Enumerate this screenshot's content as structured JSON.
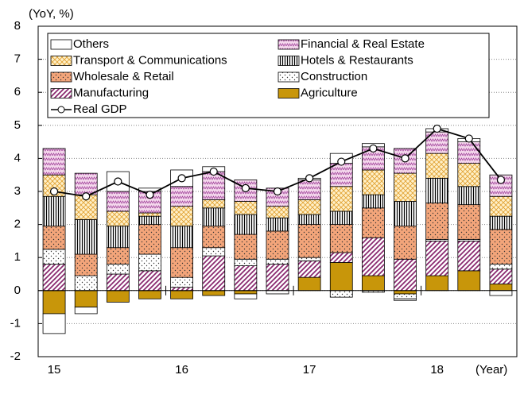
{
  "chart_data": {
    "type": "stacked_bar",
    "y_label": "(YoY, %)",
    "x_label": "(Year)",
    "categories": [
      "15",
      null,
      null,
      null,
      "16",
      null,
      null,
      null,
      "17",
      null,
      null,
      null,
      "18",
      null,
      null
    ],
    "ylim": [
      -2,
      8
    ],
    "yticks": [
      -2,
      -1,
      0,
      1,
      2,
      3,
      4,
      5,
      6,
      7,
      8
    ],
    "grid": true,
    "legend": "upper left",
    "series": [
      {
        "name": "Others",
        "color": "#ffffff",
        "pattern": "none",
        "values": [
          -0.6,
          -0.2,
          0.6,
          0.1,
          0.5,
          0.15,
          -0.15,
          -0.1,
          0.05,
          0.3,
          0.1,
          -0.05,
          0.1,
          0.1,
          -0.15
        ]
      },
      {
        "name": "Financial & Real Estate",
        "color": "#f4d8ec",
        "pattern": "zigzag",
        "values": [
          0.8,
          0.65,
          0.6,
          0.65,
          0.6,
          0.85,
          0.65,
          0.55,
          0.6,
          0.7,
          0.7,
          0.75,
          0.65,
          0.65,
          0.65
        ]
      },
      {
        "name": "Transport & Communications",
        "color": "#fff0c8",
        "pattern": "crosshatch",
        "values": [
          0.65,
          0.75,
          0.45,
          0.1,
          0.6,
          0.25,
          0.4,
          0.35,
          0.45,
          0.75,
          0.75,
          0.85,
          0.75,
          0.7,
          0.6
        ]
      },
      {
        "name": "Hotels & Restaurants",
        "color": "#ffffff",
        "pattern": "vertical",
        "values": [
          0.9,
          1.05,
          0.65,
          0.25,
          0.65,
          0.55,
          0.6,
          0.4,
          0.3,
          0.4,
          0.4,
          0.75,
          0.75,
          0.55,
          0.4
        ]
      },
      {
        "name": "Wholesale & Retail",
        "color": "#f3a57a",
        "pattern": "dots",
        "values": [
          0.7,
          0.65,
          0.5,
          0.9,
          0.9,
          0.65,
          0.75,
          0.85,
          1.0,
          0.85,
          0.9,
          1.0,
          1.1,
          1.05,
          1.05
        ]
      },
      {
        "name": "Construction",
        "color": "#ffffff",
        "pattern": "dots",
        "values": [
          0.45,
          0.45,
          0.3,
          0.5,
          0.3,
          0.25,
          0.2,
          0.15,
          0.1,
          -0.2,
          -0.05,
          -0.15,
          0.05,
          0.05,
          0.15
        ]
      },
      {
        "name": "Manufacturing",
        "color": "#ffffff",
        "pattern": "diagonal",
        "values": [
          0.8,
          0,
          0.5,
          0.6,
          0.1,
          1.05,
          0.75,
          0.8,
          0.5,
          0.3,
          1.15,
          0.95,
          1.05,
          0.9,
          0.45
        ]
      },
      {
        "name": "Agriculture",
        "color": "#c8960a",
        "pattern": "none",
        "values": [
          -0.7,
          -0.5,
          -0.35,
          -0.25,
          -0.25,
          -0.15,
          -0.1,
          0,
          0.4,
          0.85,
          0.45,
          -0.1,
          0.45,
          0.6,
          0.2
        ]
      },
      {
        "name": "Real GDP",
        "color": "#000000",
        "type": "line",
        "values": [
          3.0,
          2.85,
          3.3,
          2.9,
          3.4,
          3.6,
          3.1,
          3.0,
          3.4,
          3.9,
          4.3,
          4.0,
          4.9,
          4.6,
          3.35
        ]
      }
    ]
  }
}
